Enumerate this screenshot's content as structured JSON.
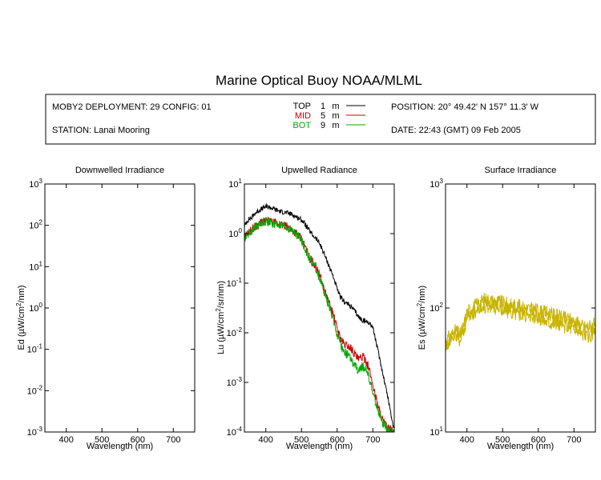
{
  "title": "Marine Optical Buoy NOAA/MLML",
  "info": {
    "deployment": "MOBY2 DEPLOYMENT: 29 CONFIG: 01",
    "station": "STATION: Lanai Mooring",
    "position": "POSITION: 20° 49.42' N   157° 11.3' W",
    "date": "DATE: 22:43 (GMT) 09 Feb 2005",
    "depth_legend": [
      {
        "name": "TOP",
        "depth": "1",
        "unit": "m",
        "color": "#000000"
      },
      {
        "name": "MID",
        "depth": "5",
        "unit": "m",
        "color": "#cc0000"
      },
      {
        "name": "BOT",
        "depth": "9",
        "unit": "m",
        "color": "#00aa00"
      }
    ]
  },
  "chart_data": [
    {
      "type": "line",
      "title": "Downwelled Irradiance",
      "xlabel": "Wavelength (nm)",
      "ylabel": {
        "pre": "Ed  (µW/cm",
        "sup": "2",
        "post": "/nm)"
      },
      "xlim": [
        340,
        760
      ],
      "xticks": [
        "400",
        "500",
        "600",
        "700"
      ],
      "yscale": "log",
      "ylim": [
        0.001,
        1000
      ],
      "yticks": [
        {
          "base": "10",
          "exp": "-3"
        },
        {
          "base": "10",
          "exp": "-2"
        },
        {
          "base": "10",
          "exp": "-1"
        },
        {
          "base": "10",
          "exp": "0"
        },
        {
          "base": "10",
          "exp": "1"
        },
        {
          "base": "10",
          "exp": "2"
        },
        {
          "base": "10",
          "exp": "3"
        }
      ],
      "series": []
    },
    {
      "type": "line",
      "title": "Upwelled Radiance",
      "xlabel": "Wavelength (nm)",
      "ylabel": {
        "pre": "Lu  (µW/cm",
        "sup": "2",
        "post": "/sr/nm)"
      },
      "xlim": [
        340,
        760
      ],
      "xticks": [
        "400",
        "500",
        "600",
        "700"
      ],
      "yscale": "log",
      "ylim": [
        0.0001,
        10
      ],
      "yticks": [
        {
          "base": "10",
          "exp": "-4"
        },
        {
          "base": "10",
          "exp": "-3"
        },
        {
          "base": "10",
          "exp": "-2"
        },
        {
          "base": "10",
          "exp": "-1"
        },
        {
          "base": "10",
          "exp": "0"
        },
        {
          "base": "10",
          "exp": "1"
        }
      ],
      "series": [
        {
          "color": "#000000",
          "noise": 0.05,
          "x": [
            340,
            350,
            360,
            370,
            380,
            390,
            400,
            410,
            420,
            430,
            440,
            450,
            460,
            470,
            480,
            490,
            500,
            510,
            520,
            530,
            540,
            550,
            560,
            570,
            580,
            590,
            600,
            610,
            620,
            630,
            640,
            650,
            660,
            670,
            680,
            690,
            700,
            710,
            720,
            730,
            740,
            750,
            758
          ],
          "y": [
            1.4,
            1.9,
            2.1,
            2.6,
            2.9,
            3.2,
            3.5,
            3.4,
            3.2,
            3.0,
            2.8,
            2.7,
            2.6,
            2.5,
            2.3,
            2.1,
            1.9,
            1.55,
            1.2,
            0.95,
            0.8,
            0.65,
            0.45,
            0.3,
            0.2,
            0.13,
            0.075,
            0.05,
            0.043,
            0.038,
            0.033,
            0.027,
            0.021,
            0.018,
            0.017,
            0.016,
            0.013,
            0.006,
            0.0028,
            0.0013,
            0.0006,
            0.00025,
            0.00012
          ]
        },
        {
          "color": "#cc0000",
          "noise": 0.09,
          "x": [
            340,
            350,
            360,
            370,
            380,
            390,
            400,
            410,
            420,
            430,
            440,
            450,
            460,
            470,
            480,
            490,
            500,
            510,
            520,
            530,
            540,
            550,
            560,
            570,
            580,
            590,
            600,
            610,
            620,
            630,
            640,
            650,
            660,
            670,
            680,
            690,
            700,
            710,
            720,
            730,
            740,
            750,
            758
          ],
          "y": [
            0.85,
            1.05,
            1.2,
            1.4,
            1.55,
            1.7,
            1.8,
            1.75,
            1.65,
            1.6,
            1.5,
            1.45,
            1.35,
            1.25,
            1.1,
            0.95,
            0.75,
            0.55,
            0.35,
            0.28,
            0.22,
            0.15,
            0.09,
            0.055,
            0.035,
            0.022,
            0.012,
            0.0075,
            0.0058,
            0.0055,
            0.0048,
            0.0037,
            0.0028,
            0.0033,
            0.0029,
            0.0018,
            0.0009,
            0.00045,
            0.00025,
            0.00016,
            0.00012,
            0.00011,
            0.0001
          ]
        },
        {
          "color": "#00aa00",
          "noise": 0.09,
          "x": [
            340,
            350,
            360,
            370,
            380,
            390,
            400,
            410,
            420,
            430,
            440,
            450,
            460,
            470,
            480,
            490,
            500,
            510,
            520,
            530,
            540,
            550,
            560,
            570,
            580,
            590,
            600,
            610,
            620,
            630,
            640,
            650,
            660,
            670,
            680,
            690,
            700,
            710,
            720,
            730,
            740,
            750,
            758
          ],
          "y": [
            0.8,
            1.0,
            1.15,
            1.35,
            1.5,
            1.65,
            1.75,
            1.7,
            1.6,
            1.55,
            1.45,
            1.4,
            1.3,
            1.2,
            1.05,
            0.9,
            0.72,
            0.52,
            0.33,
            0.26,
            0.2,
            0.13,
            0.08,
            0.048,
            0.03,
            0.018,
            0.009,
            0.0055,
            0.0042,
            0.0036,
            0.0028,
            0.0021,
            0.0016,
            0.0021,
            0.0019,
            0.0012,
            0.0006,
            0.00035,
            0.0002,
            0.00014,
            0.00011,
            0.0001,
            0.0001
          ]
        }
      ]
    },
    {
      "type": "line",
      "title": "Surface Irradiance",
      "xlabel": "Wavelength (nm)",
      "ylabel": {
        "pre": "Es  (µW/cm",
        "sup": "2",
        "post": "/nm)"
      },
      "xlim": [
        340,
        760
      ],
      "xticks": [
        "400",
        "500",
        "600",
        "700"
      ],
      "yscale": "log",
      "ylim": [
        10,
        1000
      ],
      "yticks": [
        {
          "base": "10",
          "exp": "1"
        },
        {
          "base": "10",
          "exp": "2"
        },
        {
          "base": "10",
          "exp": "3"
        }
      ],
      "series": [
        {
          "color": "#c8b400",
          "noise": 0.06,
          "x": [
            340,
            350,
            360,
            370,
            380,
            390,
            400,
            410,
            420,
            430,
            440,
            450,
            460,
            470,
            480,
            490,
            500,
            510,
            520,
            530,
            540,
            550,
            560,
            570,
            580,
            590,
            600,
            610,
            620,
            630,
            640,
            650,
            660,
            670,
            680,
            690,
            700,
            710,
            720,
            730,
            740,
            750,
            758
          ],
          "y": [
            55,
            58,
            62,
            66,
            60,
            70,
            92,
            98,
            102,
            108,
            112,
            118,
            116,
            114,
            113,
            112,
            110,
            108,
            106,
            105,
            104,
            103,
            100,
            99,
            98,
            97,
            95,
            93,
            92,
            90,
            88,
            87,
            85,
            82,
            83,
            80,
            78,
            76,
            72,
            70,
            71,
            72,
            74
          ]
        },
        {
          "color": "#c8b400",
          "noise": 0.06,
          "x": [
            340,
            350,
            360,
            370,
            380,
            390,
            400,
            410,
            420,
            430,
            440,
            450,
            460,
            470,
            480,
            490,
            500,
            510,
            520,
            530,
            540,
            550,
            560,
            570,
            580,
            590,
            600,
            610,
            620,
            630,
            640,
            650,
            660,
            670,
            680,
            690,
            700,
            710,
            720,
            730,
            740,
            750,
            758
          ],
          "y": [
            50,
            53,
            57,
            60,
            55,
            64,
            82,
            88,
            92,
            97,
            100,
            104,
            103,
            102,
            100,
            99,
            97,
            95,
            93,
            92,
            91,
            90,
            88,
            86,
            85,
            84,
            83,
            81,
            80,
            78,
            77,
            75,
            74,
            71,
            72,
            70,
            68,
            66,
            63,
            60,
            58,
            60,
            62
          ]
        }
      ]
    }
  ]
}
